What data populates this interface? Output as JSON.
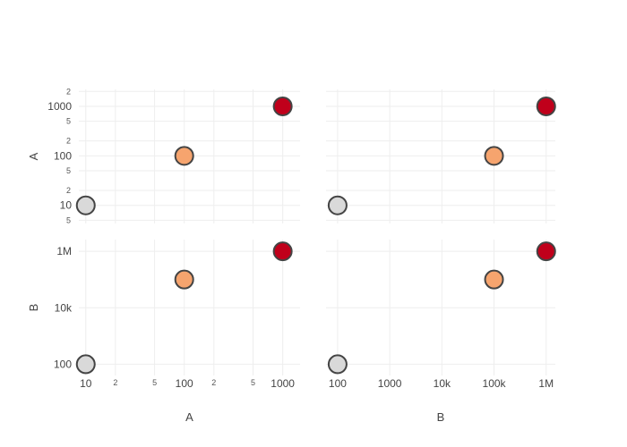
{
  "chart_data": {
    "type": "scatter",
    "subtype": "scatter-matrix",
    "title": "",
    "dimensions": [
      {
        "label": "A",
        "values": [
          10,
          100,
          1000
        ]
      },
      {
        "label": "B",
        "values": [
          100,
          100000,
          1000000
        ]
      }
    ],
    "points": [
      {
        "A": 10,
        "B": 100,
        "color": "#d9d9d9"
      },
      {
        "A": 100,
        "B": 100000,
        "color": "#f6a46e"
      },
      {
        "A": 1000,
        "B": 1000000,
        "color": "#c0001b"
      }
    ],
    "axis_scale": "log",
    "axes": {
      "A": {
        "range": [
          8.5,
          1500
        ],
        "major_ticks": [
          {
            "v": 10,
            "label": "10"
          },
          {
            "v": 100,
            "label": "100"
          },
          {
            "v": 1000,
            "label": "1000"
          }
        ],
        "minor_ticks_x": [
          {
            "v": 20,
            "label": "2"
          },
          {
            "v": 50,
            "label": "5"
          },
          {
            "v": 200,
            "label": "2"
          },
          {
            "v": 500,
            "label": "5"
          }
        ],
        "minor_ticks_y": [
          {
            "v": 5,
            "label": "5"
          },
          {
            "v": 20,
            "label": "2"
          },
          {
            "v": 50,
            "label": "5"
          },
          {
            "v": 200,
            "label": "2"
          },
          {
            "v": 500,
            "label": "5"
          },
          {
            "v": 2000,
            "label": "2"
          }
        ],
        "y_range": [
          4.3,
          2200
        ]
      },
      "B": {
        "range": [
          60,
          1500000
        ],
        "major_ticks_x": [
          {
            "v": 100,
            "label": "100"
          },
          {
            "v": 1000,
            "label": "1000"
          },
          {
            "v": 10000,
            "label": "10k"
          },
          {
            "v": 100000,
            "label": "100k"
          },
          {
            "v": 1000000,
            "label": "1M"
          }
        ],
        "major_ticks_y": [
          {
            "v": 100,
            "label": "100"
          },
          {
            "v": 10000,
            "label": "10k"
          },
          {
            "v": 1000000,
            "label": "1M"
          }
        ],
        "y_range": [
          40,
          2600000
        ]
      }
    },
    "marker": {
      "line_color": "#444444"
    },
    "grid": true,
    "legend": false
  }
}
